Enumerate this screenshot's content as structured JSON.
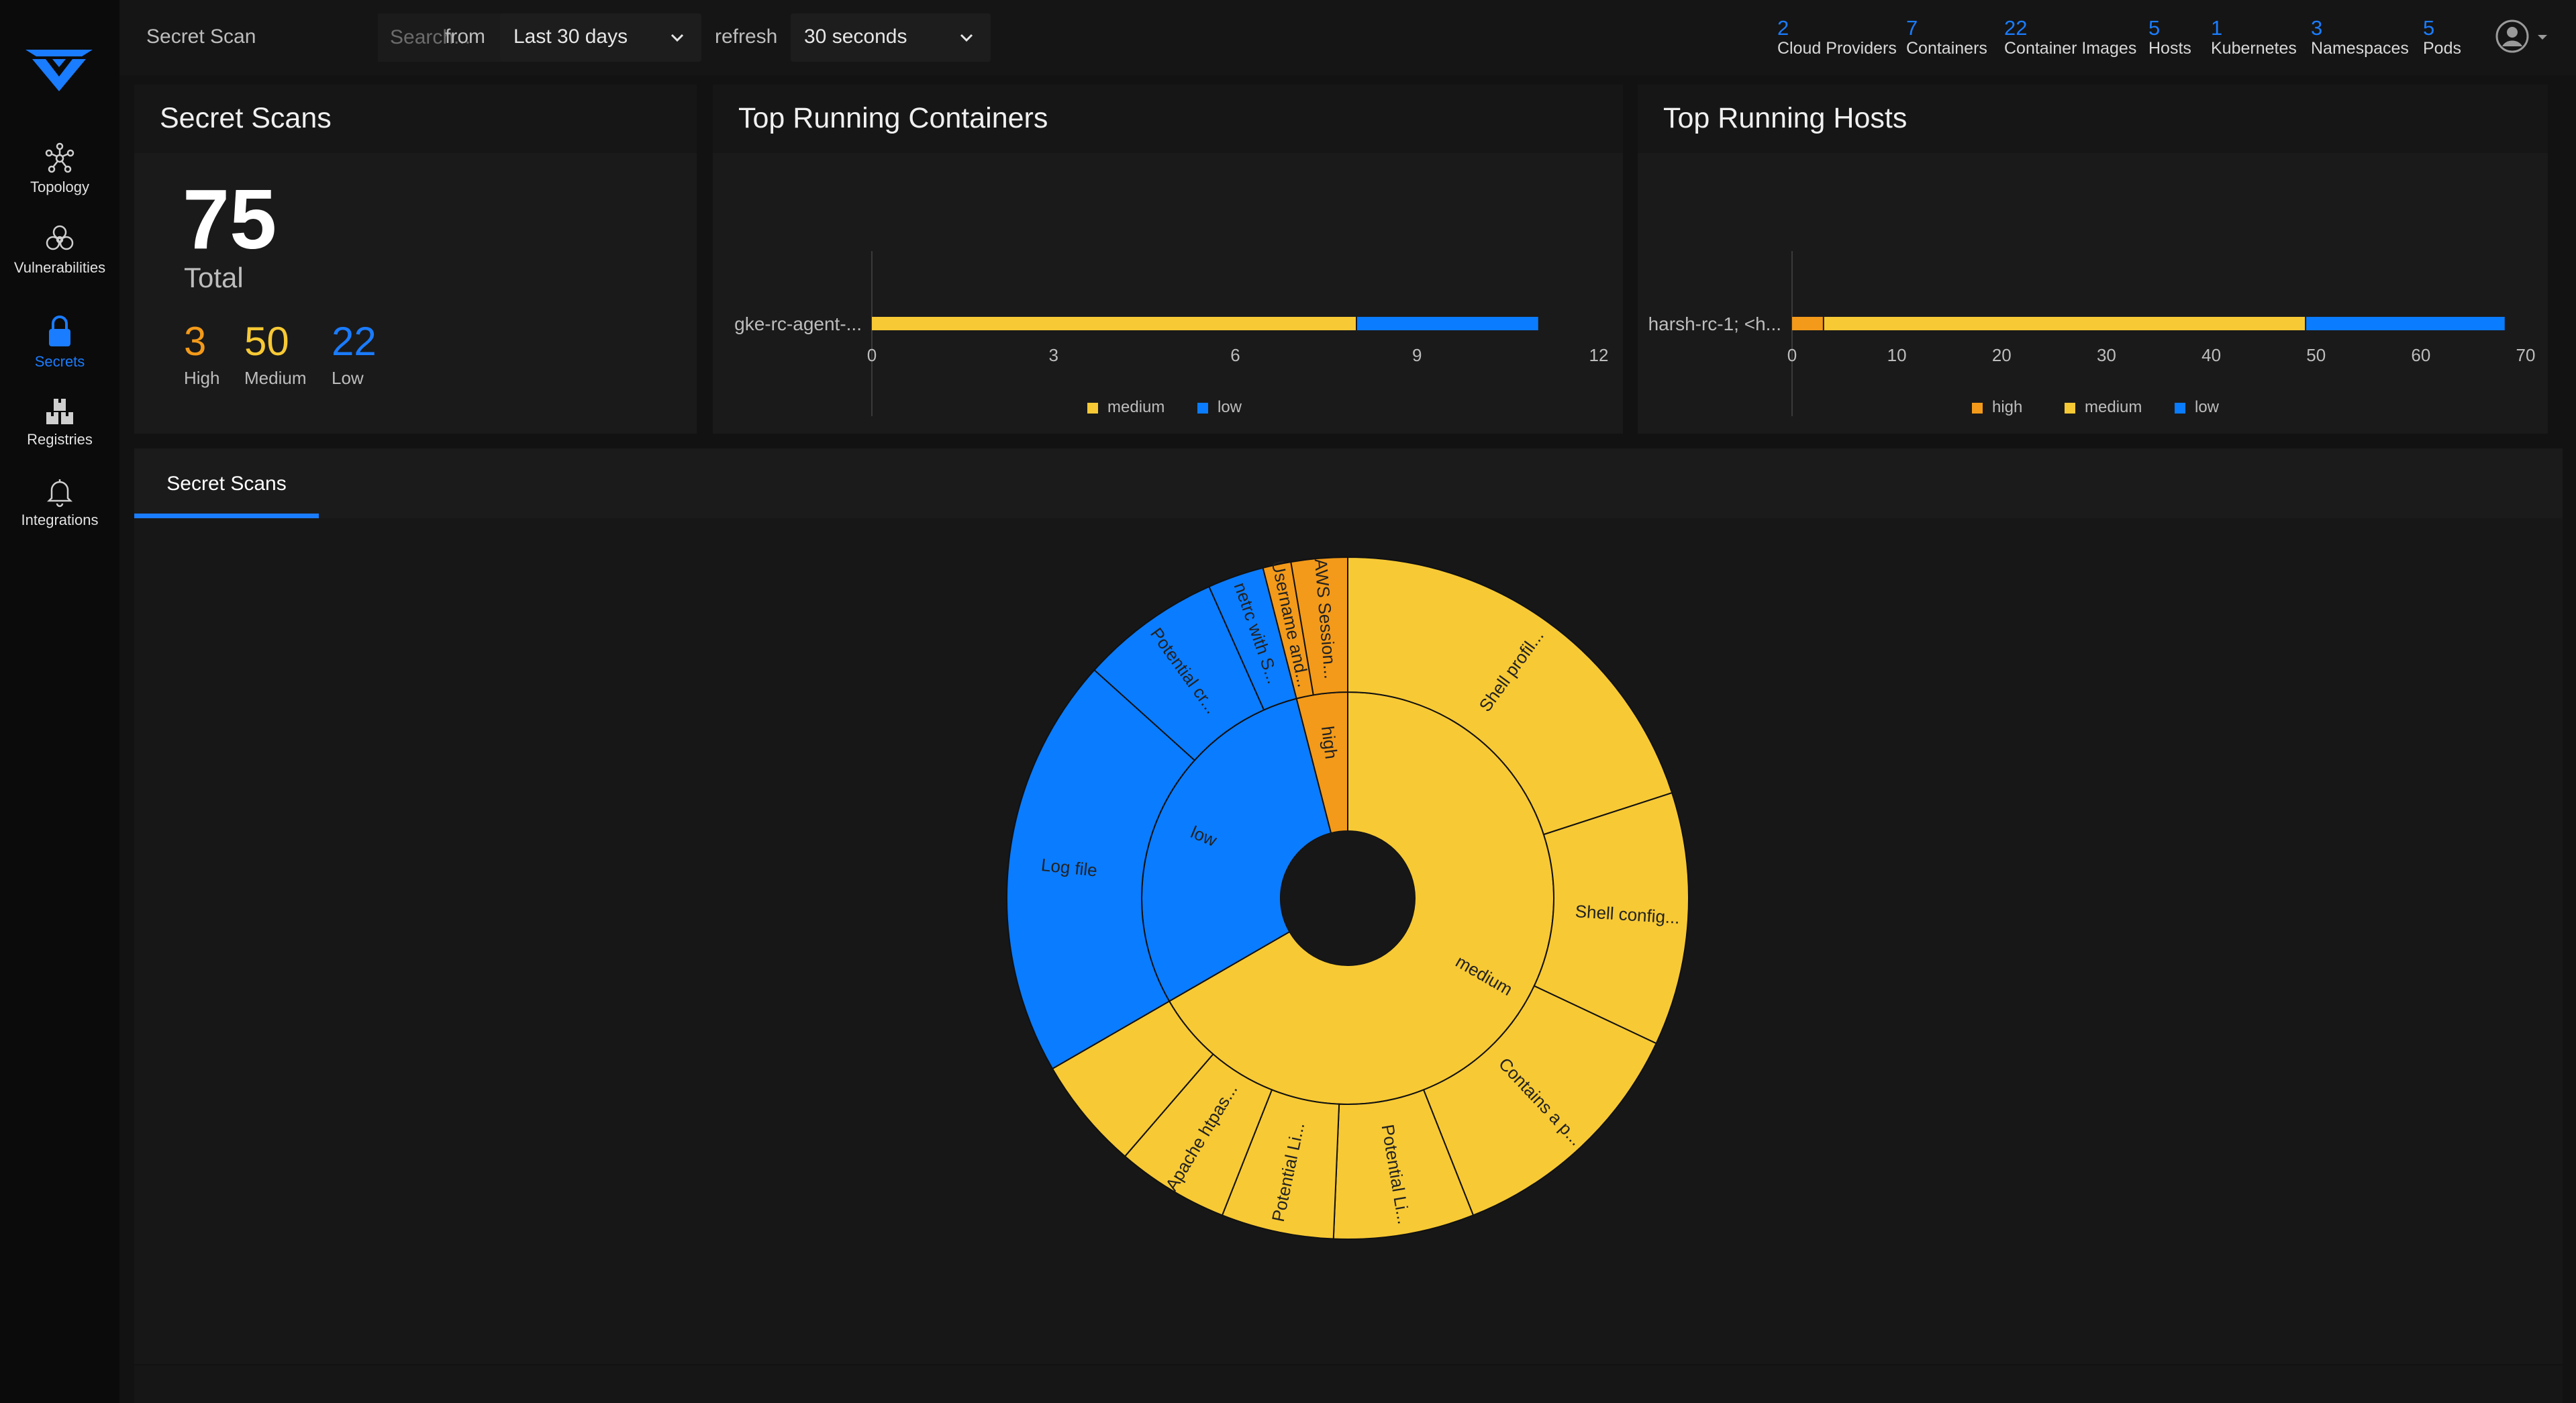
{
  "sidebar": {
    "items": [
      {
        "label": "Topology",
        "icon": "topology-icon",
        "active": false
      },
      {
        "label": "Vulnerabilities",
        "icon": "biohazard-icon",
        "active": false
      },
      {
        "label": "Secrets",
        "icon": "lock-icon",
        "active": true
      },
      {
        "label": "Registries",
        "icon": "registry-icon",
        "active": false
      },
      {
        "label": "Integrations",
        "icon": "bell-icon",
        "active": false
      }
    ]
  },
  "topbar": {
    "page_label": "Secret Scan",
    "search_placeholder": "Search...",
    "from_label": "from",
    "time_range": "Last 30 days",
    "refresh_label": "refresh",
    "refresh_interval": "30 seconds",
    "stats": [
      {
        "value": "2",
        "label": "Cloud Providers"
      },
      {
        "value": "7",
        "label": "Containers"
      },
      {
        "value": "22",
        "label": "Container Images"
      },
      {
        "value": "5",
        "label": "Hosts"
      },
      {
        "value": "1",
        "label": "Kubernetes"
      },
      {
        "value": "3",
        "label": "Namespaces"
      },
      {
        "value": "5",
        "label": "Pods"
      }
    ]
  },
  "summary_card": {
    "title": "Secret Scans",
    "total": "75",
    "total_label": "Total",
    "high": "3",
    "high_label": "High",
    "medium": "50",
    "medium_label": "Medium",
    "low": "22",
    "low_label": "Low"
  },
  "colors": {
    "high": "#f39a1a",
    "medium": "#f7c935",
    "low": "#0a7cff",
    "accent": "#1a7cff"
  },
  "tabs": [
    {
      "label": "Secret Scans",
      "active": true
    }
  ],
  "chart_data": [
    {
      "type": "bar",
      "orientation": "horizontal",
      "stacked": true,
      "title": "Top Running Containers",
      "categories": [
        "gke-rc-agent-..."
      ],
      "series": [
        {
          "name": "medium",
          "values": [
            8
          ]
        },
        {
          "name": "low",
          "values": [
            3
          ]
        }
      ],
      "xlim": [
        0,
        12
      ],
      "xticks": [
        0,
        3,
        6,
        9,
        12
      ],
      "legend": "bottom"
    },
    {
      "type": "bar",
      "orientation": "horizontal",
      "stacked": true,
      "title": "Top Running Hosts",
      "categories": [
        "harsh-rc-1; <h..."
      ],
      "series": [
        {
          "name": "high",
          "values": [
            3
          ]
        },
        {
          "name": "medium",
          "values": [
            46
          ]
        },
        {
          "name": "low",
          "values": [
            19
          ]
        }
      ],
      "xlim": [
        0,
        70
      ],
      "xticks": [
        0,
        10,
        20,
        30,
        40,
        50,
        60,
        70
      ],
      "legend": "bottom"
    },
    {
      "type": "sunburst",
      "inner": [
        {
          "name": "high",
          "value": 3
        },
        {
          "name": "medium",
          "value": 50
        },
        {
          "name": "low",
          "value": 22
        }
      ],
      "outer": [
        {
          "parent": "high",
          "name": "Username and...",
          "value": 1
        },
        {
          "parent": "high",
          "name": "AWS Session...",
          "value": 2
        },
        {
          "parent": "medium",
          "name": "Shell profil...",
          "value": 15
        },
        {
          "parent": "medium",
          "name": "Shell config...",
          "value": 9
        },
        {
          "parent": "medium",
          "name": "Contains a p...",
          "value": 9
        },
        {
          "parent": "medium",
          "name": "Potential Li...",
          "value": 5
        },
        {
          "parent": "medium",
          "name": "Potential Li...",
          "value": 4
        },
        {
          "parent": "medium",
          "name": "Apache htpas...",
          "value": 4
        },
        {
          "parent": "medium",
          "name": "",
          "value": 4
        },
        {
          "parent": "low",
          "name": "Log file",
          "value": 15
        },
        {
          "parent": "low",
          "name": "Potential cr...",
          "value": 5
        },
        {
          "parent": "low",
          "name": "netrc with S...",
          "value": 2
        }
      ]
    }
  ]
}
